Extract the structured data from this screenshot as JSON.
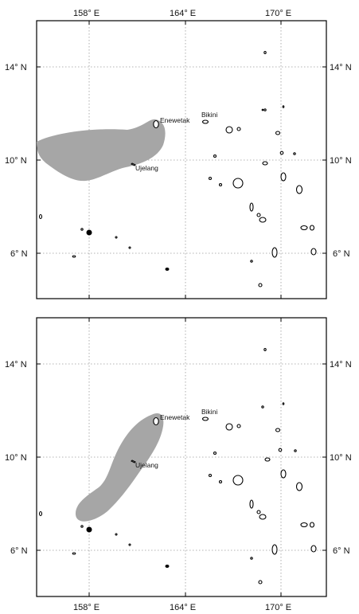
{
  "map": {
    "panels": [
      {
        "id": "top",
        "longitude_labels": [
          "158° E",
          "164° E",
          "170° E"
        ],
        "latitude_labels": [
          "14° N",
          "10° N",
          "6° N"
        ],
        "place_labels": [
          "Enewetak",
          "Bikini",
          "Ujelang"
        ],
        "range_color": "#a6a6a6"
      },
      {
        "id": "bottom",
        "longitude_labels": [
          "158° E",
          "164° E",
          "170° E"
        ],
        "latitude_labels": [
          "14° N",
          "10° N",
          "6° N"
        ],
        "place_labels": [
          "Enewetak",
          "Bikini",
          "Ujelang"
        ],
        "range_color": "#a6a6a6"
      }
    ]
  }
}
